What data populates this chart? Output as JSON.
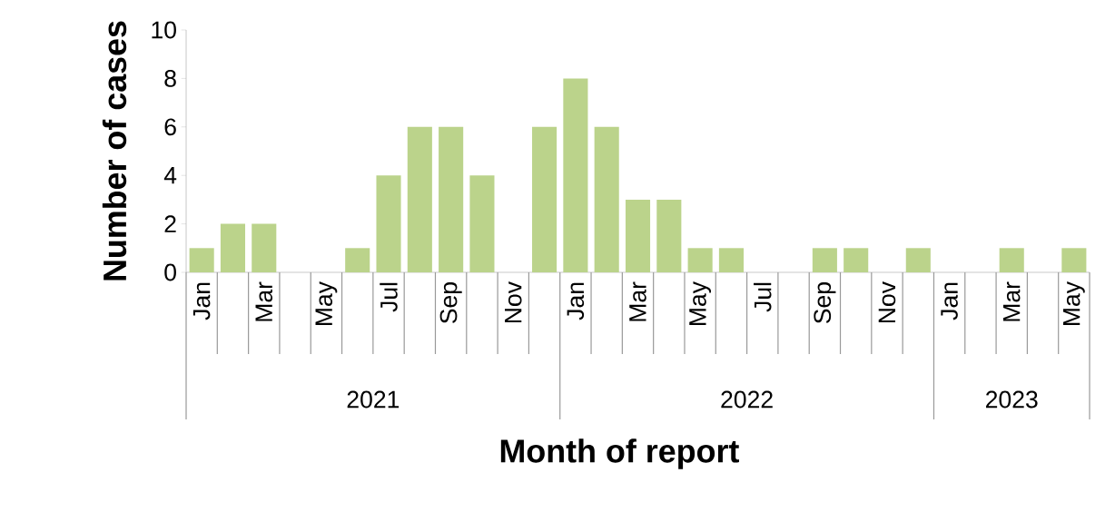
{
  "chart_data": {
    "type": "bar",
    "xlabel": "Month of report",
    "ylabel": "Number of cases",
    "categories": [
      "Jan",
      null,
      "Mar",
      null,
      "May",
      null,
      "Jul",
      null,
      "Sep",
      null,
      "Nov",
      null,
      "Jan",
      null,
      "Mar",
      null,
      "May",
      null,
      "Jul",
      null,
      "Sep",
      null,
      "Nov",
      null,
      "Jan",
      null,
      "Mar",
      null,
      "May"
    ],
    "values": [
      1,
      2,
      2,
      0,
      0,
      1,
      4,
      6,
      6,
      4,
      0,
      6,
      8,
      6,
      3,
      3,
      1,
      1,
      0,
      0,
      1,
      1,
      0,
      1,
      0,
      0,
      1,
      0,
      1
    ],
    "color": "#bbd38b",
    "ylim": [
      0,
      10
    ],
    "yticks": [
      0,
      2,
      4,
      6,
      8,
      10
    ],
    "annotations": [
      "2021",
      "2022",
      "2023"
    ]
  }
}
